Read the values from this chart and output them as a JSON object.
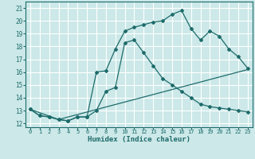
{
  "title": "",
  "xlabel": "Humidex (Indice chaleur)",
  "ylabel": "",
  "xlim": [
    -0.5,
    23.5
  ],
  "ylim": [
    11.7,
    21.5
  ],
  "yticks": [
    12,
    13,
    14,
    15,
    16,
    17,
    18,
    19,
    20,
    21
  ],
  "xticks": [
    0,
    1,
    2,
    3,
    4,
    5,
    6,
    7,
    8,
    9,
    10,
    11,
    12,
    13,
    14,
    15,
    16,
    17,
    18,
    19,
    20,
    21,
    22,
    23
  ],
  "background_color": "#cce8e8",
  "line_color": "#1e6b6b",
  "grid_color": "#ffffff",
  "line1_x": [
    0,
    1,
    2,
    3,
    4,
    5,
    6,
    7,
    8,
    9,
    10,
    11,
    12,
    13,
    14,
    15,
    16,
    17,
    18,
    19,
    20,
    21,
    22,
    23
  ],
  "line1_y": [
    13.1,
    12.6,
    12.5,
    12.3,
    12.2,
    12.5,
    12.5,
    16.0,
    16.1,
    17.8,
    19.2,
    19.5,
    19.7,
    19.9,
    20.0,
    20.5,
    20.8,
    19.4,
    18.5,
    19.2,
    18.8,
    17.8,
    17.2,
    16.3
  ],
  "line2_x": [
    0,
    1,
    2,
    3,
    4,
    5,
    6,
    7,
    8,
    9,
    10,
    11,
    12,
    13,
    14,
    15,
    16,
    17,
    18,
    19,
    20,
    21,
    22,
    23
  ],
  "line2_y": [
    13.1,
    12.6,
    12.5,
    12.3,
    12.2,
    12.5,
    12.5,
    13.0,
    14.5,
    14.8,
    18.3,
    18.5,
    17.5,
    16.5,
    15.5,
    15.0,
    14.5,
    14.0,
    13.5,
    13.3,
    13.2,
    13.1,
    13.0,
    12.9
  ],
  "line3_x": [
    0,
    3,
    23
  ],
  "line3_y": [
    13.1,
    12.3,
    16.2
  ]
}
